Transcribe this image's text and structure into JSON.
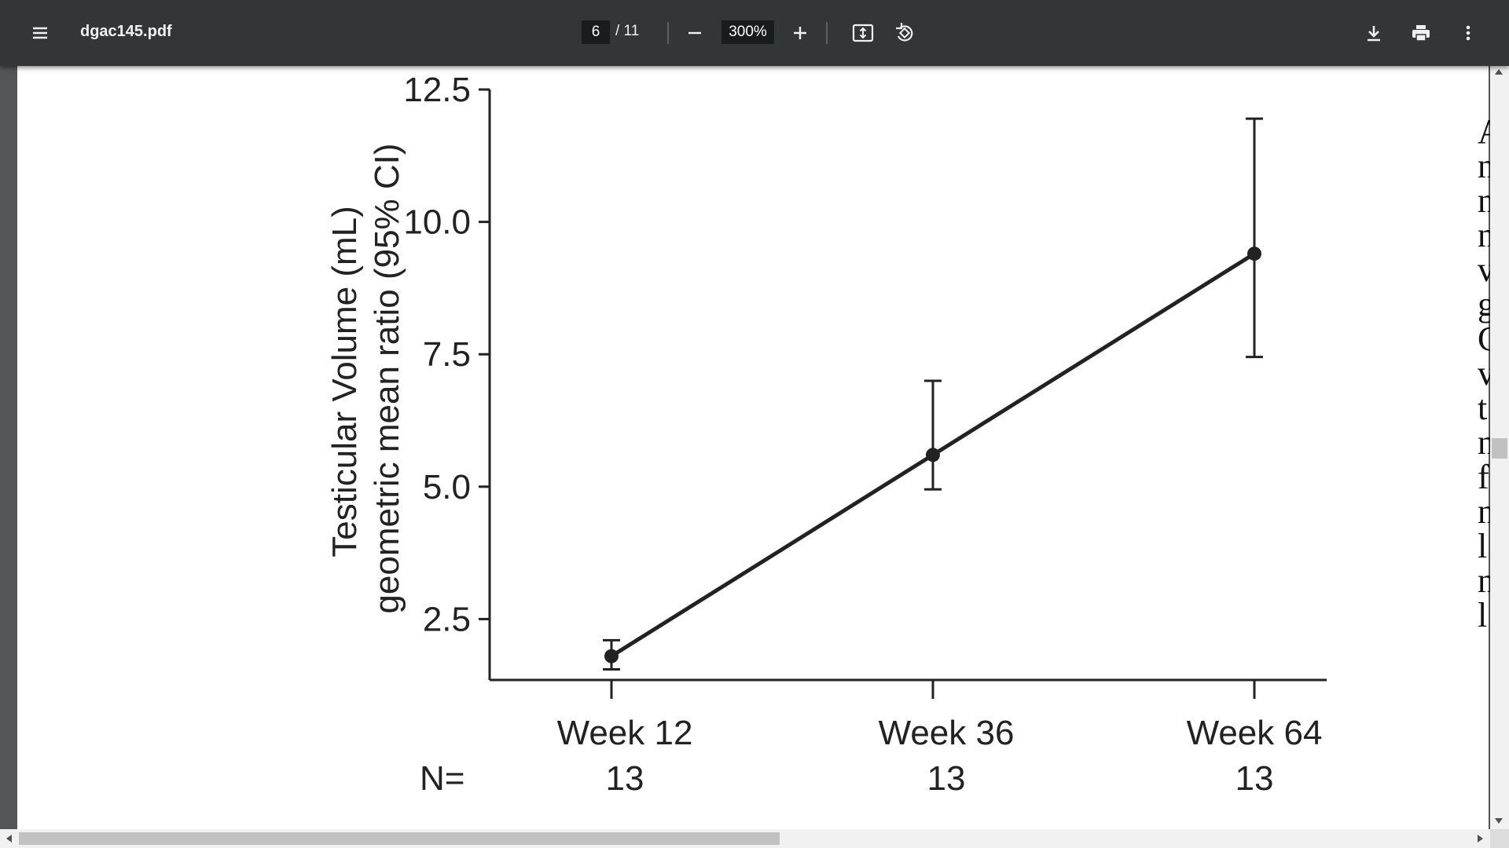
{
  "toolbar": {
    "file_name": "dgac145.pdf",
    "current_page": "6",
    "page_total": "/ 11",
    "zoom": "300%",
    "icons": [
      "menu-icon",
      "minus-icon",
      "plus-icon",
      "fit-page-icon",
      "rotate-icon",
      "download-icon",
      "print-icon",
      "more-vert-icon"
    ]
  },
  "document": {
    "right_column_chars": [
      "A",
      "n",
      "n",
      "n",
      "v",
      "g",
      "C",
      "v",
      "t",
      "n",
      "f",
      "n",
      "l",
      "n",
      "l"
    ]
  },
  "chart_data": {
    "type": "line",
    "ylabel_line1": "Testicular Volume (mL)",
    "ylabel_line2": "geometric mean ratio (95% CI)",
    "yticks": [
      "2.5",
      "5.0",
      "7.5",
      "10.0",
      "12.5"
    ],
    "ytick_values": [
      2.5,
      5.0,
      7.5,
      10.0,
      12.5
    ],
    "ylim": [
      1.35,
      12.5
    ],
    "categories": [
      "Week 12",
      "Week 36",
      "Week 64"
    ],
    "n_label": "N=",
    "n_values": [
      "13",
      "13",
      "13"
    ],
    "series": [
      {
        "values": [
          1.8,
          5.6,
          9.4
        ],
        "ci_lower": [
          1.55,
          4.95,
          7.45
        ],
        "ci_upper": [
          2.1,
          7.0,
          11.95
        ]
      }
    ],
    "colors": {
      "line": "#222222",
      "axis": "#222222"
    },
    "grid": false
  }
}
